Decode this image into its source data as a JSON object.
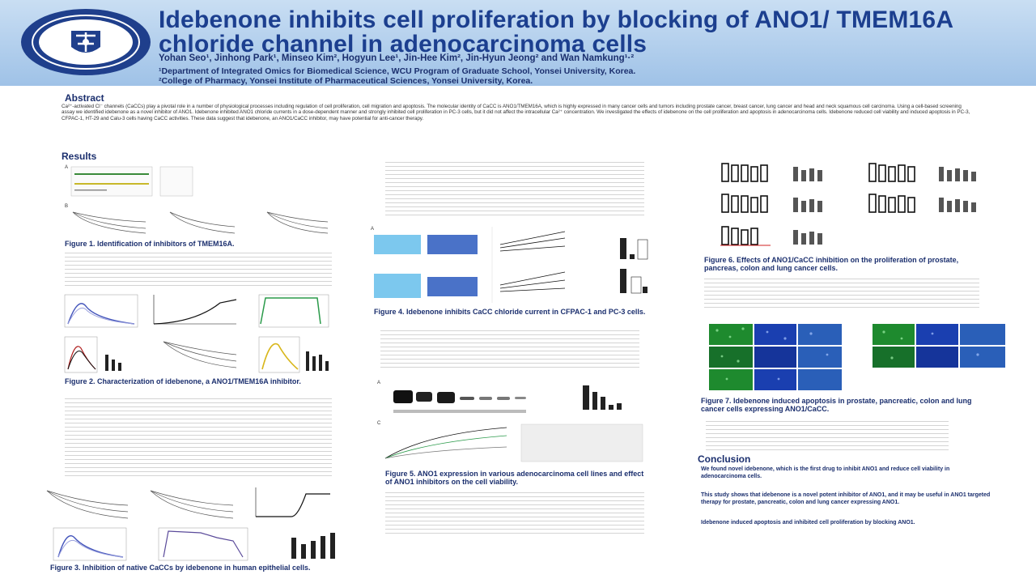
{
  "poster": {
    "title": "Idebenone inhibits cell proliferation by blocking of ANO1/ TMEM16A chloride channel in adenocarcinoma cells",
    "authors": "Yohan Seo¹, Jinhong Park¹, Minseo Kim², Hogyun Lee¹, Jin-Hee Kim², Jin-Hyun Jeong² and Wan Namkung¹·²",
    "affiliation_1": "¹Department of Integrated Omics for Biomedical Science, WCU Program of Graduate School, Yonsei University, Korea.",
    "affiliation_2": "²College of Pharmacy, Yonsei Institute of Pharmaceutical Sciences, Yonsei University, Korea."
  },
  "sections": {
    "abstract_heading": "Abstract",
    "abstract_text": "Ca²⁺-activated Cl⁻ channels (CaCCs) play a pivotal role in a number of physiological processes including regulation of cell proliferation, cell migration and apoptosis. The molecular identity of CaCC is ANO1/TMEM16A, which is highly expressed in many cancer cells and tumors including prostate cancer, breast cancer, lung cancer and head and neck squamous cell carcinoma. Using a cell-based screening assay we identified idebenone as a novel inhibitor of ANO1. Idebenone inhibited ANO1 chloride currents in a dose-dependent manner and strongly inhibited cell proliferation in PC-3 cells, but it did not affect the intracellular Ca²⁺ concentration. We investigated the effects of idebenone on the cell proliferation and apoptosis in adenocarcinoma cells. Idebenone reduced cell viability and induced apoptosis in PC-3, CFPAC-1, HT-29 and Calu-3 cells having CaCC activities. These data suggest that idebenone, an ANO1/CaCC inhibitor, may have potential for anti-cancer therapy.",
    "results_heading": "Results",
    "conclusion_heading": "Conclusion"
  },
  "captions": {
    "fig1": "Figure 1. Identification of inhibitors of TMEM16A.",
    "fig2": "Figure 2. Characterization of idebenone, a ANO1/TMEM16A inhibitor.",
    "fig3": "Figure 3. Inhibition of native CaCCs by idebenone in human epithelial cells.",
    "fig4": "Figure 4. Idebenone inhibits CaCC chloride current in CFPAC-1 and PC-3 cells.",
    "fig5": "Figure 5. ANO1 expression in various adenocarcinoma cell lines and effect of ANO1 inhibitors on the cell viability.",
    "fig6": "Figure 6. Effects of ANO1/CaCC inhibition on the proliferation of prostate, pancreas, colon and lung cancer cells.",
    "fig7": "Figure 7. Idebenone induced apoptosis in prostate, pancreatic, colon and lung cancer cells expressing ANO1/CaCC."
  },
  "conclusion": {
    "lead": "We found novel idebenone, which is the first drug to inhibit ANO1 and reduce cell viability in adenocarcinoma cells.",
    "body": "This study shows that idebenone is a novel potent inhibitor of ANO1, and it may be useful in ANO1 targeted therapy for prostate, pancreatic, colon and lung cancer expressing ANO1.",
    "highlight": "Idebenone induced apoptosis and inhibited cell proliferation by blocking ANO1."
  },
  "colors": {
    "header_top": "#c9def3",
    "header_bottom": "#9fc2e7",
    "title": "#1c3f8f",
    "heading": "#1b2f6e",
    "highlight": "#d02020",
    "trace_blue": "#4455bb",
    "trace_green": "#2a9a4a",
    "trace_yellow": "#d8b61a",
    "micro_green": "#1e8a2e",
    "micro_blue": "#1a3fb0"
  }
}
